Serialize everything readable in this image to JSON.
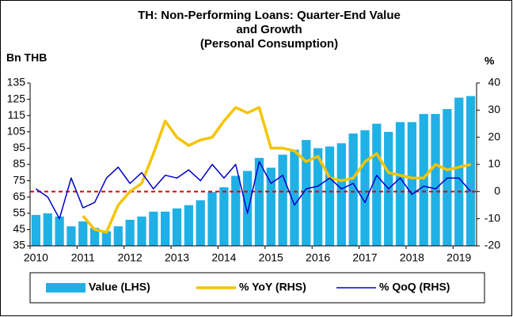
{
  "chart_data": {
    "type": "bar_line",
    "title_lines": [
      "TH: Non-Performing Loans: Quarter-End Value",
      "and Growth",
      "(Personal Consumption)"
    ],
    "y_label": "Bn THB",
    "y2_label": "%",
    "categories": [
      "2010",
      null,
      null,
      null,
      "2011",
      null,
      null,
      null,
      "2012",
      null,
      null,
      null,
      "2013",
      null,
      null,
      null,
      "2014",
      null,
      null,
      null,
      "2015",
      null,
      null,
      null,
      "2016",
      null,
      null,
      null,
      "2017",
      null,
      null,
      null,
      "2018",
      null,
      null,
      null,
      "2019",
      null
    ],
    "series": [
      {
        "name": "Value (LHS)",
        "type": "bar",
        "color": "#1fb1e6",
        "axis": "y",
        "values": [
          54,
          55,
          53,
          47,
          50,
          46,
          44,
          47,
          51,
          53,
          56,
          56,
          58,
          60,
          63,
          68,
          71,
          78,
          81,
          89,
          83,
          91,
          94,
          100,
          95,
          96,
          98,
          104,
          106,
          110,
          105,
          111,
          111,
          116,
          116,
          119,
          126,
          127
        ]
      },
      {
        "name": "% YoY (RHS)",
        "type": "line",
        "color": "#f5c400",
        "axis": "y2",
        "values": [
          null,
          null,
          null,
          null,
          -9,
          -14,
          -15,
          -5,
          0,
          3,
          14,
          26,
          20,
          17,
          19,
          20,
          26,
          31,
          29,
          31,
          16,
          16,
          15,
          11,
          13,
          5,
          4,
          5,
          11,
          14,
          7,
          6,
          5,
          5,
          10,
          8,
          9,
          10
        ]
      },
      {
        "name": "% QoQ (RHS)",
        "type": "line",
        "color": "#0000cc",
        "axis": "y2",
        "values": [
          1,
          -2,
          -10,
          5,
          -6,
          -4,
          5,
          9,
          3,
          7,
          1,
          6,
          5,
          8,
          4,
          10,
          5,
          10,
          -8,
          11,
          3,
          6,
          -5,
          1,
          2,
          5,
          1,
          3,
          -4,
          6,
          1,
          5,
          -1,
          2,
          1,
          5,
          5,
          0
        ]
      }
    ],
    "ylim": [
      35,
      135
    ],
    "yticks": [
      35,
      45,
      55,
      65,
      75,
      85,
      95,
      105,
      115,
      125,
      135
    ],
    "y2lim": [
      -20,
      40
    ],
    "y2ticks": [
      -20,
      -10,
      0,
      10,
      20,
      30,
      40
    ],
    "reference_line": {
      "axis": "y2",
      "value": 0,
      "color": "#e00000"
    }
  }
}
